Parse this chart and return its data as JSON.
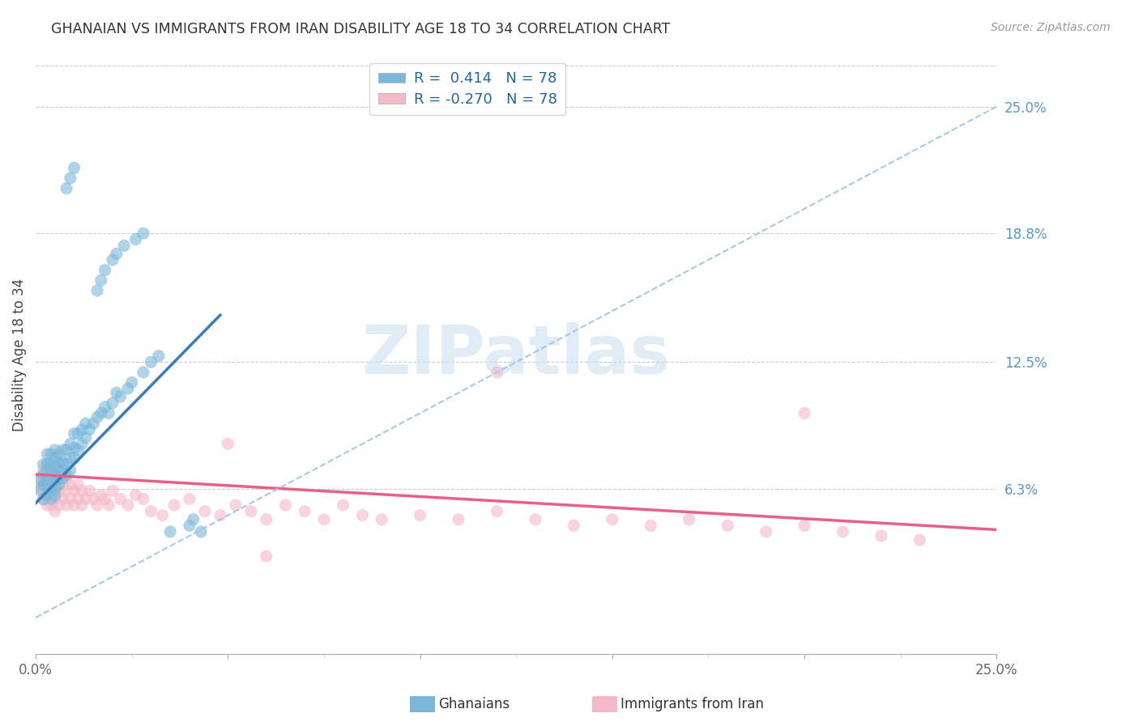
{
  "title": "GHANAIAN VS IMMIGRANTS FROM IRAN DISABILITY AGE 18 TO 34 CORRELATION CHART",
  "source": "Source: ZipAtlas.com",
  "ylabel_label": "Disability Age 18 to 34",
  "right_yticks": [
    "25.0%",
    "18.8%",
    "12.5%",
    "6.3%"
  ],
  "right_ytick_vals": [
    0.25,
    0.188,
    0.125,
    0.063
  ],
  "xmin": 0.0,
  "xmax": 0.25,
  "ymin": -0.018,
  "ymax": 0.275,
  "blue_color": "#7ab8d9",
  "pink_color": "#f5b8c8",
  "trend_blue": "#3a7abf",
  "trend_pink": "#e8608a",
  "trend_dashed_color": "#a8c8e8",
  "watermark_color": "#c8dff0",
  "blue_scatter_x": [
    0.001,
    0.001,
    0.002,
    0.002,
    0.002,
    0.002,
    0.003,
    0.003,
    0.003,
    0.003,
    0.003,
    0.003,
    0.004,
    0.004,
    0.004,
    0.004,
    0.004,
    0.004,
    0.005,
    0.005,
    0.005,
    0.005,
    0.005,
    0.005,
    0.005,
    0.006,
    0.006,
    0.006,
    0.006,
    0.006,
    0.007,
    0.007,
    0.007,
    0.007,
    0.008,
    0.008,
    0.008,
    0.009,
    0.009,
    0.009,
    0.01,
    0.01,
    0.01,
    0.011,
    0.011,
    0.012,
    0.012,
    0.013,
    0.013,
    0.014,
    0.015,
    0.016,
    0.017,
    0.018,
    0.019,
    0.02,
    0.021,
    0.022,
    0.024,
    0.025,
    0.028,
    0.03,
    0.032,
    0.035,
    0.04,
    0.041,
    0.043,
    0.016,
    0.017,
    0.018,
    0.02,
    0.021,
    0.023,
    0.026,
    0.028,
    0.008,
    0.009,
    0.01
  ],
  "blue_scatter_y": [
    0.063,
    0.068,
    0.058,
    0.065,
    0.07,
    0.075,
    0.06,
    0.065,
    0.068,
    0.072,
    0.075,
    0.08,
    0.058,
    0.062,
    0.065,
    0.07,
    0.075,
    0.08,
    0.06,
    0.063,
    0.067,
    0.07,
    0.074,
    0.078,
    0.082,
    0.065,
    0.068,
    0.072,
    0.076,
    0.08,
    0.068,
    0.072,
    0.076,
    0.082,
    0.07,
    0.075,
    0.082,
    0.072,
    0.078,
    0.085,
    0.078,
    0.083,
    0.09,
    0.082,
    0.09,
    0.085,
    0.092,
    0.088,
    0.095,
    0.092,
    0.095,
    0.098,
    0.1,
    0.103,
    0.1,
    0.105,
    0.11,
    0.108,
    0.112,
    0.115,
    0.12,
    0.125,
    0.128,
    0.042,
    0.045,
    0.048,
    0.042,
    0.16,
    0.165,
    0.17,
    0.175,
    0.178,
    0.182,
    0.185,
    0.188,
    0.21,
    0.215,
    0.22
  ],
  "pink_scatter_x": [
    0.001,
    0.001,
    0.002,
    0.002,
    0.002,
    0.003,
    0.003,
    0.003,
    0.003,
    0.004,
    0.004,
    0.004,
    0.005,
    0.005,
    0.005,
    0.005,
    0.006,
    0.006,
    0.006,
    0.007,
    0.007,
    0.007,
    0.008,
    0.008,
    0.008,
    0.009,
    0.009,
    0.01,
    0.01,
    0.011,
    0.011,
    0.012,
    0.012,
    0.013,
    0.014,
    0.015,
    0.016,
    0.017,
    0.018,
    0.019,
    0.02,
    0.022,
    0.024,
    0.026,
    0.028,
    0.03,
    0.033,
    0.036,
    0.04,
    0.044,
    0.048,
    0.052,
    0.056,
    0.06,
    0.065,
    0.07,
    0.075,
    0.08,
    0.085,
    0.09,
    0.1,
    0.11,
    0.12,
    0.13,
    0.14,
    0.15,
    0.16,
    0.17,
    0.18,
    0.19,
    0.2,
    0.21,
    0.22,
    0.23,
    0.2,
    0.12,
    0.05,
    0.06
  ],
  "pink_scatter_y": [
    0.062,
    0.068,
    0.058,
    0.065,
    0.072,
    0.055,
    0.06,
    0.068,
    0.075,
    0.055,
    0.062,
    0.07,
    0.052,
    0.058,
    0.065,
    0.072,
    0.055,
    0.062,
    0.07,
    0.058,
    0.065,
    0.072,
    0.055,
    0.062,
    0.068,
    0.058,
    0.065,
    0.055,
    0.062,
    0.058,
    0.065,
    0.055,
    0.062,
    0.058,
    0.062,
    0.058,
    0.055,
    0.06,
    0.058,
    0.055,
    0.062,
    0.058,
    0.055,
    0.06,
    0.058,
    0.052,
    0.05,
    0.055,
    0.058,
    0.052,
    0.05,
    0.055,
    0.052,
    0.048,
    0.055,
    0.052,
    0.048,
    0.055,
    0.05,
    0.048,
    0.05,
    0.048,
    0.052,
    0.048,
    0.045,
    0.048,
    0.045,
    0.048,
    0.045,
    0.042,
    0.045,
    0.042,
    0.04,
    0.038,
    0.1,
    0.12,
    0.085,
    0.03
  ],
  "blue_line_x": [
    0.0,
    0.048
  ],
  "blue_line_y": [
    0.056,
    0.148
  ],
  "pink_line_x": [
    0.0,
    0.25
  ],
  "pink_line_y": [
    0.07,
    0.043
  ],
  "dashed_line_x": [
    0.0,
    0.25
  ],
  "dashed_line_y": [
    0.0,
    0.25
  ],
  "legend_label1": "Ghanaians",
  "legend_label2": "Immigrants from Iran",
  "legend_r1_val": "0.414",
  "legend_r2_val": "-0.270",
  "legend_n": "78"
}
